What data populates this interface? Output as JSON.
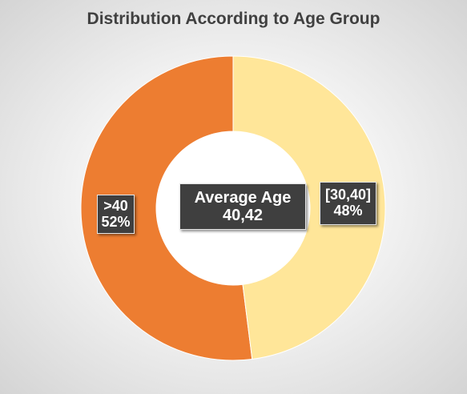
{
  "chart_data": {
    "type": "donut",
    "title": "Distribution According to Age Group",
    "categories": [
      ">40",
      "[30,40]"
    ],
    "values": [
      52,
      48
    ],
    "value_labels": [
      "52%",
      "48%"
    ],
    "colors": [
      "#ED7D31",
      "#FFE699"
    ],
    "center_label": {
      "line1": "Average Age",
      "line2": "40,42"
    },
    "legend": "none"
  }
}
